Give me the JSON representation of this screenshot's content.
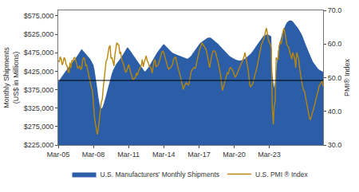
{
  "chart_data": {
    "type": "area",
    "ylabel": "Monthly Shipments\n(US$ in Millions)",
    "y2label": "PMI® Index",
    "categories": [
      "Mar-05",
      null,
      null,
      null,
      null,
      null,
      null,
      null,
      null,
      null,
      null,
      null,
      null,
      null,
      null,
      null,
      null,
      null,
      null,
      null,
      null,
      null,
      null,
      null,
      null,
      null,
      null,
      null,
      null,
      null,
      null,
      null,
      null,
      null,
      null,
      null,
      "Mar-08",
      null,
      null,
      null,
      null,
      null,
      null,
      null,
      null,
      null,
      null,
      null,
      null,
      null,
      null,
      null,
      null,
      null,
      null,
      null,
      null,
      null,
      null,
      null,
      null,
      null,
      null,
      null,
      null,
      null,
      null,
      null,
      null,
      null,
      null,
      null,
      "Mar-11",
      null,
      null,
      null,
      null,
      null,
      null,
      null,
      null,
      null,
      null,
      null,
      null,
      null,
      null,
      null,
      null,
      null,
      null,
      null,
      null,
      null,
      null,
      null,
      null,
      null,
      null,
      null,
      null,
      null,
      null,
      null,
      null,
      null,
      null,
      null,
      "Mar-14",
      null,
      null,
      null,
      null,
      null,
      null,
      null,
      null,
      null,
      null,
      null,
      null,
      null,
      null,
      null,
      null,
      null,
      null,
      null,
      null,
      null,
      null,
      null,
      null,
      null,
      null,
      null,
      null,
      null,
      null,
      null,
      null,
      null,
      null,
      null,
      "Mar-17",
      null,
      null,
      null,
      null,
      null,
      null,
      null,
      null,
      null,
      null,
      null,
      null,
      null,
      null,
      null,
      null,
      null,
      null,
      null,
      null,
      null,
      null,
      null,
      null,
      null,
      null,
      null,
      null,
      null,
      null,
      null,
      null,
      null,
      null,
      null,
      "Mar-20",
      null,
      null,
      null,
      null,
      null,
      null,
      null,
      null,
      null,
      null,
      null,
      null,
      null,
      null,
      null,
      null,
      null,
      null,
      null,
      null,
      null,
      null,
      null,
      null,
      null,
      null,
      null,
      null,
      null,
      null,
      null,
      null,
      null,
      null,
      null,
      "Mar-23",
      null,
      null,
      null,
      null,
      null,
      null,
      null,
      null,
      null,
      null,
      null,
      null,
      null,
      null,
      null,
      null,
      null,
      null,
      null,
      null,
      null,
      null,
      null,
      null,
      null,
      null,
      null,
      null,
      null,
      null,
      null,
      null,
      null,
      null,
      null,
      null,
      null,
      null,
      null,
      null,
      null,
      null,
      null,
      null,
      null,
      null,
      null,
      null,
      null,
      null,
      null,
      null,
      null,
      null,
      null
    ],
    "ylim": [
      225000,
      590000
    ],
    "yticks": [
      {
        "value": 225000,
        "label": "$225,000"
      },
      {
        "value": 275000,
        "label": "$275,000"
      },
      {
        "value": 325000,
        "label": "$325,000"
      },
      {
        "value": 375000,
        "label": "$375,000"
      },
      {
        "value": 425000,
        "label": "$425,000"
      },
      {
        "value": 475000,
        "label": "$475,000"
      },
      {
        "value": 525000,
        "label": "$525,000"
      },
      {
        "value": 575000,
        "label": "$575,000"
      }
    ],
    "y2lim": [
      30.0,
      70.0
    ],
    "y2ticks": [
      {
        "value": 30.0,
        "label": "30.0"
      },
      {
        "value": 40.0,
        "label": "40.0"
      },
      {
        "value": 50.0,
        "label": "50.0"
      },
      {
        "value": 60.0,
        "label": "60.0"
      },
      {
        "value": 70.0,
        "label": "70.0"
      }
    ],
    "hline": {
      "y": 400000,
      "color": "#000000"
    },
    "grid": false,
    "legend": "bottom",
    "series": [
      {
        "name": "U.S. Manufacturers' Monthly Shipments",
        "type": "area",
        "color": "#2B5EA7",
        "values": [
          397000,
          399000,
          404000,
          408000,
          412000,
          416000,
          420000,
          424000,
          428000,
          431000,
          434000,
          437000,
          440000,
          443000,
          446000,
          449000,
          453000,
          457000,
          461000,
          465000,
          469000,
          473000,
          477000,
          481000,
          485000,
          482000,
          479000,
          476000,
          474000,
          471000,
          468000,
          465000,
          461000,
          457000,
          452000,
          447000,
          442000,
          430000,
          415000,
          398000,
          377000,
          355000,
          338000,
          326000,
          323000,
          326000,
          332000,
          340000,
          350000,
          360000,
          371000,
          382000,
          393000,
          403000,
          412000,
          420000,
          427000,
          433000,
          438000,
          443000,
          447000,
          450000,
          454000,
          457000,
          461000,
          465000,
          470000,
          474000,
          479000,
          483000,
          487000,
          490000,
          487000,
          483000,
          479000,
          476000,
          472000,
          468000,
          464000,
          460000,
          456000,
          452000,
          448000,
          444000,
          440000,
          436000,
          432000,
          429000,
          426000,
          424000,
          427000,
          430000,
          434000,
          438000,
          443000,
          448000,
          453000,
          458000,
          463000,
          467000,
          471000,
          475000,
          479000,
          483000,
          487000,
          490000,
          493000,
          496000,
          499000,
          496000,
          493000,
          490000,
          487000,
          484000,
          481000,
          479000,
          477000,
          475000,
          473000,
          472000,
          471000,
          470000,
          469000,
          468000,
          467000,
          466000,
          465000,
          464000,
          463000,
          462000,
          461000,
          460000,
          459000,
          460000,
          462000,
          464000,
          467000,
          471000,
          475000,
          479000,
          483000,
          487000,
          491000,
          495000,
          499000,
          501000,
          503000,
          505000,
          507000,
          509000,
          511000,
          513000,
          515000,
          516000,
          516000,
          516000,
          516000,
          514000,
          512000,
          510000,
          508000,
          506000,
          504000,
          501000,
          498000,
          495000,
          492000,
          489000,
          486000,
          483000,
          480000,
          477000,
          474000,
          471000,
          469000,
          467000,
          465000,
          463000,
          461000,
          460000,
          459000,
          457000,
          456000,
          455000,
          454000,
          454000,
          454000,
          454000,
          455000,
          456000,
          457000,
          459000,
          461000,
          463000,
          465000,
          468000,
          470000,
          473000,
          476000,
          479000,
          483000,
          487000,
          491000,
          495000,
          499000,
          503000,
          507000,
          511000,
          515000,
          519000,
          521000,
          522000,
          523000,
          524000,
          525000,
          524000,
          523000,
          521000,
          519000,
          420000,
          395000,
          380000,
          400000,
          430000,
          460000,
          480000,
          495000,
          508000,
          518000,
          527000,
          535000,
          542000,
          548000,
          553000,
          557000,
          560000,
          562000,
          563000,
          563000,
          562000,
          560000,
          557000,
          554000,
          551000,
          547000,
          543000,
          539000,
          535000,
          530000,
          525000,
          519000,
          513000,
          506000,
          499000,
          492000,
          485000,
          478000,
          471000,
          465000,
          459000,
          454000,
          449000,
          445000,
          441000,
          437000,
          434000,
          431000,
          429000,
          427000,
          425000,
          424000,
          423000
        ]
      },
      {
        "name": "U.S. PMI ® Index",
        "type": "line",
        "axis": "y2",
        "color": "#B8860B",
        "values": [
          55.0,
          54.8,
          56.2,
          55.5,
          53.8,
          54.5,
          56.0,
          55.5,
          54.0,
          53.5,
          52.0,
          51.4,
          54.5,
          52.9,
          55.2,
          54.7,
          55.8,
          56.0,
          55.0,
          53.5,
          52.8,
          53.0,
          53.5,
          52.4,
          52.8,
          55.2,
          56.0,
          55.5,
          53.6,
          53.8,
          52.5,
          50.5,
          50.0,
          48.5,
          47.0,
          46.2,
          41.5,
          38.5,
          36.3,
          34.9,
          33.1,
          34.9,
          36.9,
          40.1,
          42.8,
          43.5,
          46.8,
          50.2,
          52.8,
          54.9,
          55.5,
          57.3,
          59.0,
          59.6,
          55.7,
          56.0,
          54.5,
          53.5,
          56.9,
          58.4,
          60.4,
          59.9,
          59.7,
          57.3,
          57.5,
          55.3,
          54.5,
          53.9,
          52.4,
          51.6,
          52.0,
          53.1,
          53.9,
          52.8,
          51.5,
          50.9,
          49.7,
          49.5,
          49.7,
          50.1,
          51.4,
          50.7,
          51.8,
          52.4,
          53.4,
          53.7,
          55.4,
          53.2,
          54.6,
          55.7,
          56.5,
          55.0,
          54.6,
          53.5,
          53.2,
          52.9,
          51.3,
          53.7,
          54.9,
          55.4,
          53.2,
          53.5,
          53.7,
          54.4,
          55.7,
          56.5,
          57.5,
          57.9,
          57.5,
          56.3,
          55.0,
          54.0,
          53.2,
          52.4,
          52.9,
          53.0,
          53.5,
          54.0,
          55.5,
          55.8,
          56.2,
          54.9,
          53.2,
          52.4,
          51.5,
          50.1,
          48.6,
          47.2,
          46.5,
          47.5,
          48.2,
          48.5,
          48.0,
          47.8,
          48.5,
          50.5,
          51.8,
          52.4,
          52.8,
          53.0,
          52.8,
          53.5,
          55.0,
          56.0,
          57.5,
          58.7,
          59.3,
          60.4,
          59.9,
          59.3,
          58.8,
          58.5,
          57.5,
          56.0,
          54.5,
          53.0,
          55.0,
          56.5,
          57.7,
          58.0,
          57.9,
          57.5,
          56.5,
          55.3,
          54.0,
          52.5,
          51.0,
          48.5,
          46.2,
          47.2,
          48.5,
          49.5,
          50.5,
          51.4,
          51.1,
          52.4,
          53.0,
          52.8,
          52.5,
          51.8,
          50.9,
          50.1,
          50.5,
          51.3,
          52.1,
          52.8,
          53.5,
          54.0,
          54.5,
          55.3,
          56.2,
          57.5,
          56.0,
          54.9,
          52.9,
          50.5,
          47.8,
          47.2,
          47.9,
          48.1,
          49.5,
          50.5,
          51.7,
          52.6,
          54.1,
          55.4,
          56.5,
          57.8,
          60.0,
          60.6,
          61.4,
          62.1,
          63.7,
          64.7,
          63.2,
          61.1,
          60.5,
          59.9,
          58.8,
          41.5,
          36.1,
          41.5,
          43.1,
          56.0,
          55.4,
          55.5,
          59.3,
          60.7,
          60.0,
          61.4,
          63.7,
          64.7,
          63.2,
          61.1,
          59.8,
          59.3,
          58.8,
          57.5,
          56.5,
          55.5,
          57.5,
          56.4,
          55.5,
          53.0,
          57.5,
          56.5,
          55.5,
          52.8,
          50.5,
          49.0,
          47.5,
          46.2,
          46.0,
          44.5,
          43.0,
          41.0,
          39.5,
          38.0,
          37.5,
          38.7,
          39.5,
          40.5,
          41.5,
          42.8,
          44.0,
          45.5,
          46.8,
          47.5,
          48.0,
          48.5,
          49.0,
          47.5
        ]
      }
    ]
  }
}
